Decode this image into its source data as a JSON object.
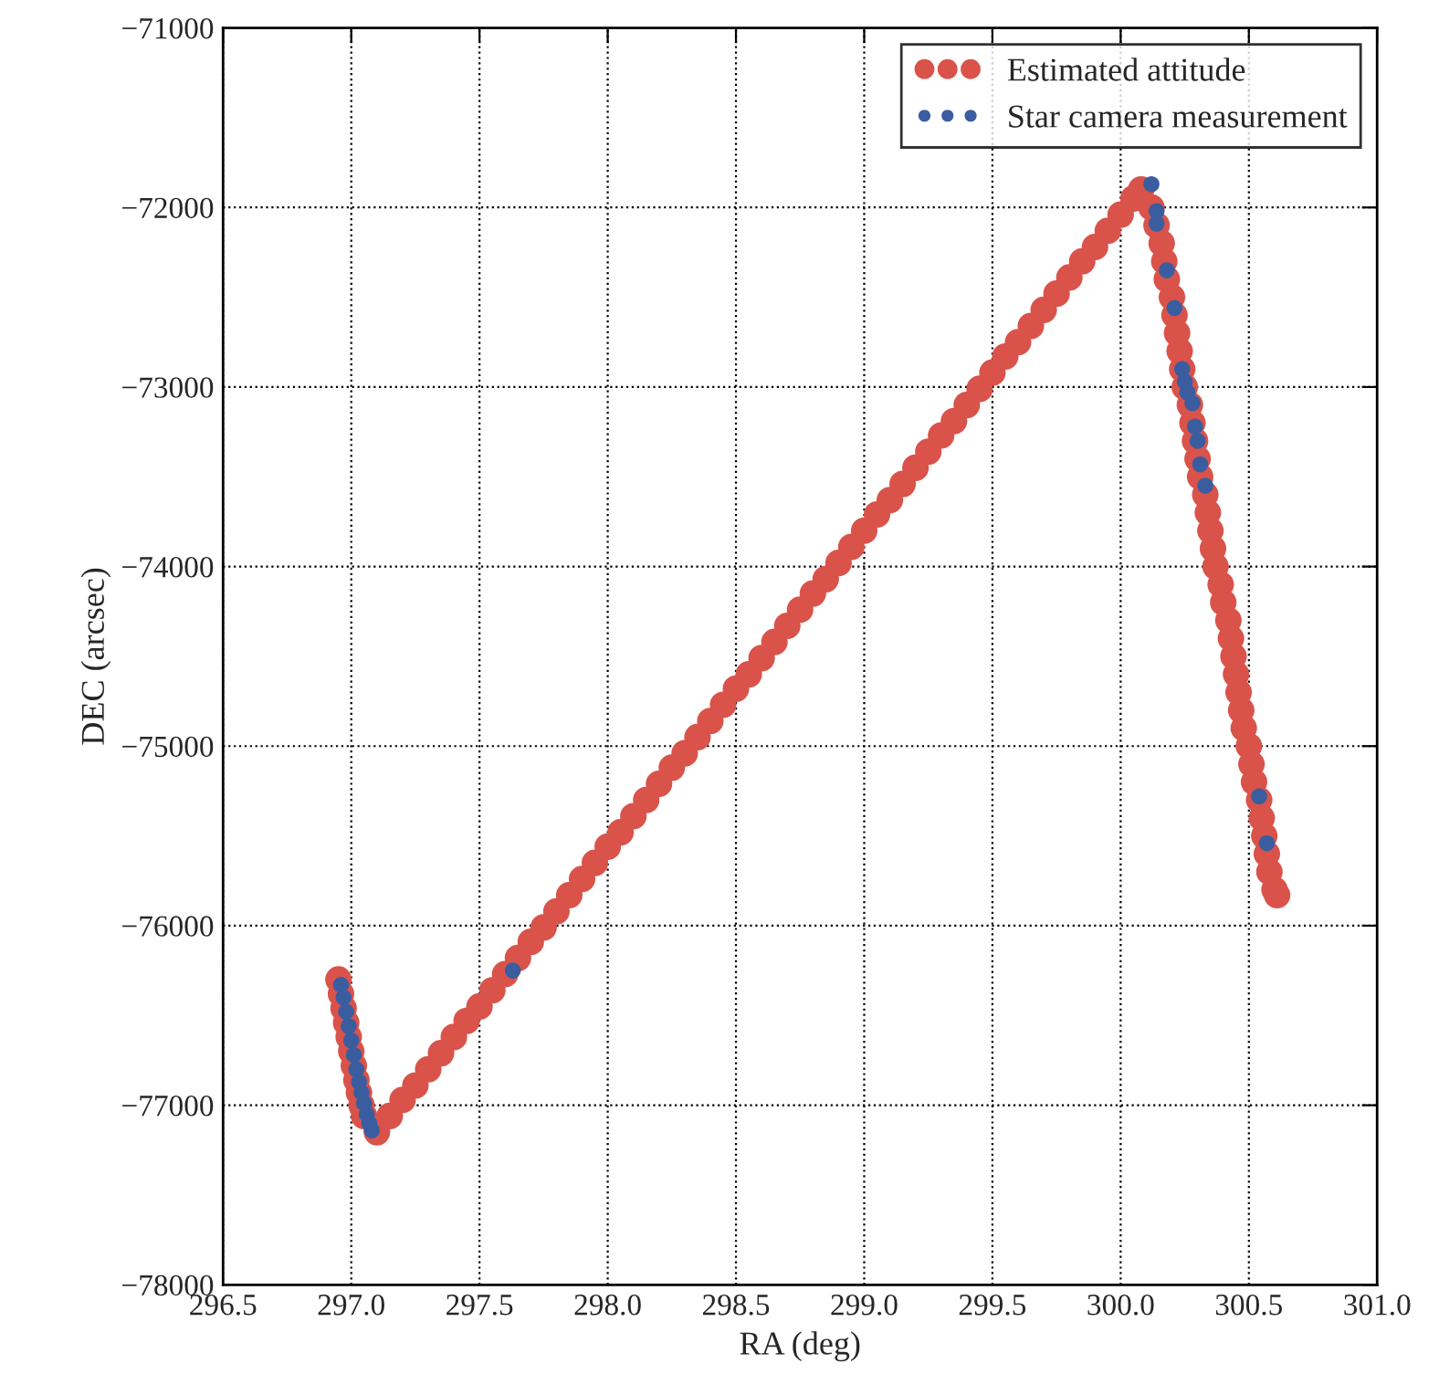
{
  "chart_data": {
    "type": "scatter",
    "xlabel": "RA (deg)",
    "ylabel": "DEC (arcsec)",
    "xlim": [
      296.5,
      301.0
    ],
    "ylim": [
      -78000,
      -71000
    ],
    "xticks": [
      {
        "value": 296.5,
        "label": "296.5"
      },
      {
        "value": 297.0,
        "label": "297.0"
      },
      {
        "value": 297.5,
        "label": "297.5"
      },
      {
        "value": 298.0,
        "label": "298.0"
      },
      {
        "value": 298.5,
        "label": "298.5"
      },
      {
        "value": 299.0,
        "label": "299.0"
      },
      {
        "value": 299.5,
        "label": "299.5"
      },
      {
        "value": 300.0,
        "label": "300.0"
      },
      {
        "value": 300.5,
        "label": "300.5"
      },
      {
        "value": 301.0,
        "label": "301.0"
      }
    ],
    "yticks": [
      {
        "value": -78000,
        "label": "−78000"
      },
      {
        "value": -77000,
        "label": "−77000"
      },
      {
        "value": -76000,
        "label": "−76000"
      },
      {
        "value": -75000,
        "label": "−75000"
      },
      {
        "value": -74000,
        "label": "−74000"
      },
      {
        "value": -73000,
        "label": "−73000"
      },
      {
        "value": -72000,
        "label": "−72000"
      },
      {
        "value": -71000,
        "label": "−71000"
      }
    ],
    "grid": true,
    "legend": "top right",
    "marker": "circle",
    "series": [
      {
        "name": "Estimated attitude",
        "color": "#d9534a",
        "x": [
          296.95,
          296.96,
          296.97,
          296.98,
          296.99,
          297.0,
          297.01,
          297.02,
          297.03,
          297.04,
          297.05,
          297.1,
          297.15,
          297.2,
          297.25,
          297.3,
          297.35,
          297.4,
          297.45,
          297.5,
          297.55,
          297.6,
          297.65,
          297.7,
          297.75,
          297.8,
          297.85,
          297.9,
          297.95,
          298.0,
          298.05,
          298.1,
          298.15,
          298.2,
          298.25,
          298.3,
          298.35,
          298.4,
          298.45,
          298.5,
          298.55,
          298.6,
          298.65,
          298.7,
          298.75,
          298.8,
          298.85,
          298.9,
          298.95,
          299.0,
          299.05,
          299.1,
          299.15,
          299.2,
          299.25,
          299.3,
          299.35,
          299.4,
          299.45,
          299.5,
          299.55,
          299.6,
          299.65,
          299.7,
          299.75,
          299.8,
          299.85,
          299.9,
          299.95,
          300.0,
          300.05,
          300.08,
          300.12,
          300.14,
          300.16,
          300.17,
          300.18,
          300.2,
          300.21,
          300.22,
          300.23,
          300.24,
          300.25,
          300.27,
          300.28,
          300.29,
          300.3,
          300.31,
          300.33,
          300.34,
          300.35,
          300.36,
          300.37,
          300.39,
          300.4,
          300.42,
          300.43,
          300.44,
          300.45,
          300.46,
          300.47,
          300.48,
          300.5,
          300.51,
          300.52,
          300.54,
          300.55,
          300.56,
          300.57,
          300.58,
          300.6,
          300.61
        ],
        "values": [
          -76300,
          -76380,
          -76460,
          -76540,
          -76620,
          -76700,
          -76780,
          -76860,
          -76930,
          -77000,
          -77060,
          -77150,
          -77060,
          -76970,
          -76890,
          -76800,
          -76710,
          -76620,
          -76530,
          -76450,
          -76360,
          -76270,
          -76180,
          -76090,
          -76010,
          -75920,
          -75830,
          -75740,
          -75650,
          -75560,
          -75480,
          -75390,
          -75300,
          -75210,
          -75120,
          -75040,
          -74950,
          -74860,
          -74770,
          -74680,
          -74600,
          -74510,
          -74420,
          -74330,
          -74240,
          -74150,
          -74070,
          -73980,
          -73890,
          -73800,
          -73710,
          -73630,
          -73540,
          -73450,
          -73360,
          -73270,
          -73190,
          -73100,
          -73010,
          -72920,
          -72830,
          -72750,
          -72660,
          -72570,
          -72480,
          -72390,
          -72300,
          -72220,
          -72130,
          -72040,
          -71950,
          -71900,
          -72000,
          -72100,
          -72200,
          -72300,
          -72400,
          -72500,
          -72600,
          -72700,
          -72800,
          -72900,
          -73000,
          -73100,
          -73200,
          -73300,
          -73400,
          -73500,
          -73600,
          -73700,
          -73800,
          -73900,
          -74000,
          -74100,
          -74200,
          -74300,
          -74400,
          -74500,
          -74600,
          -74700,
          -74800,
          -74900,
          -75000,
          -75100,
          -75200,
          -75300,
          -75400,
          -75500,
          -75600,
          -75700,
          -75800,
          -75830
        ]
      },
      {
        "name": "Star camera measurement",
        "color": "#3a5da0",
        "x": [
          296.96,
          296.97,
          296.98,
          296.99,
          297.0,
          297.01,
          297.02,
          297.03,
          297.04,
          297.05,
          297.06,
          297.07,
          297.08,
          297.63,
          300.12,
          300.14,
          300.14,
          300.18,
          300.21,
          300.24,
          300.25,
          300.26,
          300.28,
          300.29,
          300.3,
          300.31,
          300.33,
          300.54,
          300.57
        ],
        "values": [
          -76330,
          -76400,
          -76480,
          -76560,
          -76640,
          -76720,
          -76800,
          -76870,
          -76930,
          -76990,
          -77050,
          -77100,
          -77140,
          -76250,
          -71870,
          -72020,
          -72090,
          -72350,
          -72560,
          -72900,
          -72970,
          -73030,
          -73090,
          -73220,
          -73300,
          -73430,
          -73550,
          -75280,
          -75540
        ]
      }
    ]
  }
}
